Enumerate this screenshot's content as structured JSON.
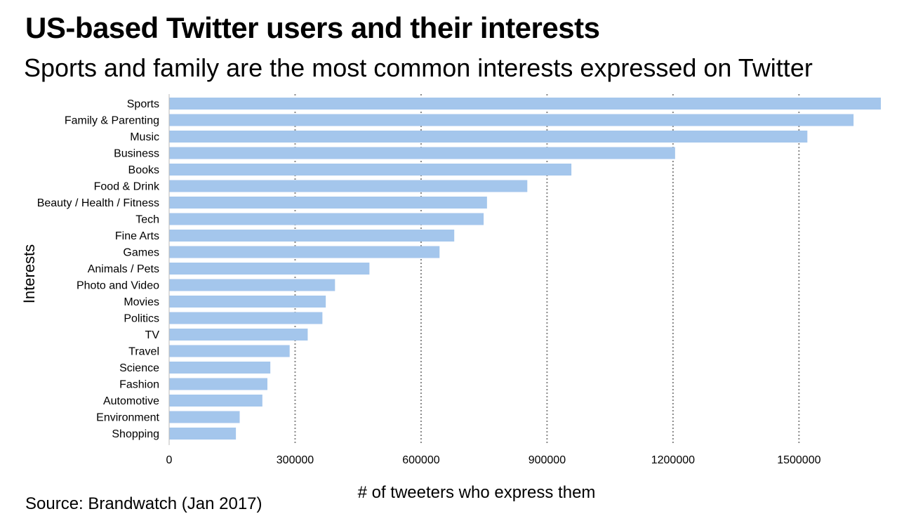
{
  "title": "US-based Twitter users and their interests",
  "subtitle": "Sports and family are the most common interests expressed on Twitter",
  "source": "Source: Brandwatch (Jan 2017)",
  "colors": {
    "bar": "#a4c6ec",
    "grid": "#888888",
    "text": "#000000"
  },
  "chart_data": {
    "type": "bar",
    "orientation": "horizontal",
    "xlabel": "# of tweeters who express them",
    "ylabel": "Interests",
    "xlim": [
      0,
      1700000
    ],
    "xticks": [
      0,
      300000,
      600000,
      900000,
      1200000,
      1500000
    ],
    "xtick_labels": [
      "0",
      "300000",
      "600000",
      "900000",
      "1200000",
      "1500000"
    ],
    "grid": "vertical dotted",
    "categories": [
      "Sports",
      "Family & Parenting",
      "Music",
      "Business",
      "Books",
      "Food & Drink",
      "Beauty / Health / Fitness",
      "Tech",
      "Fine Arts",
      "Games",
      "Animals / Pets",
      "Photo and Video",
      "Movies",
      "Politics",
      "TV",
      "Travel",
      "Science",
      "Fashion",
      "Automotive",
      "Environment",
      "Shopping"
    ],
    "values": [
      1695000,
      1630000,
      1520000,
      1205000,
      958000,
      853000,
      757000,
      749000,
      679000,
      644000,
      477000,
      395000,
      373000,
      365000,
      330000,
      287000,
      241000,
      234000,
      222000,
      168000,
      159000
    ]
  }
}
